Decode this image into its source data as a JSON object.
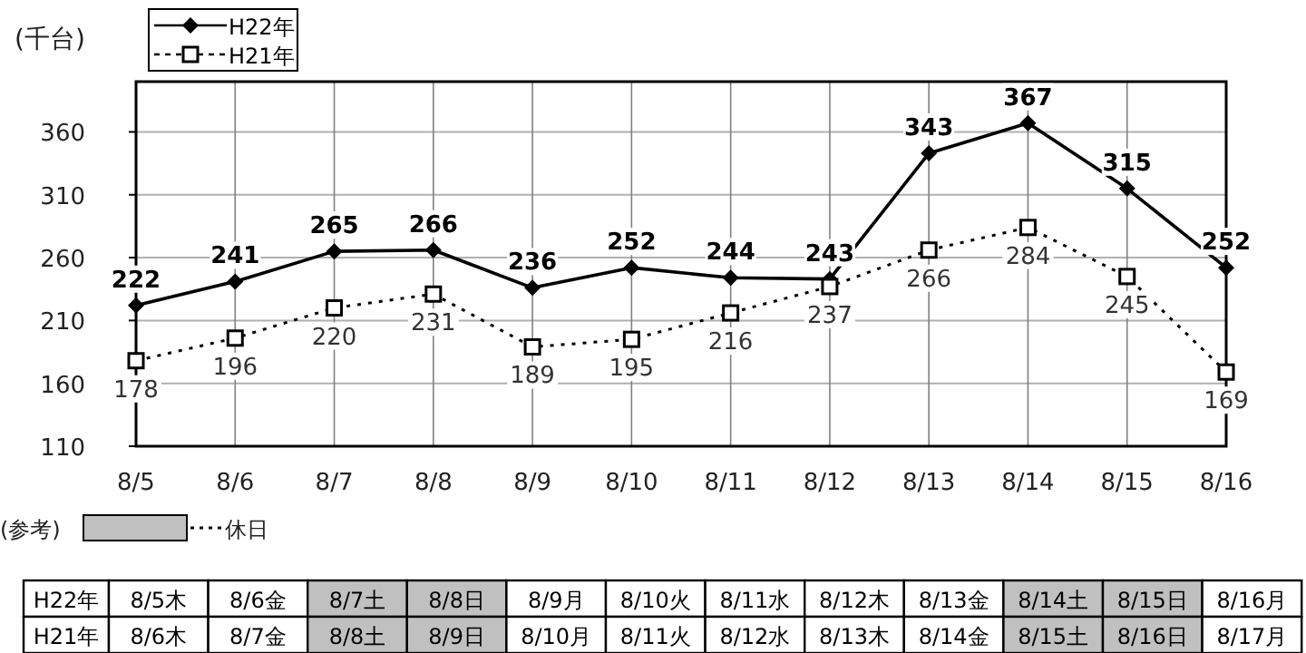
{
  "chart_data": [
    {
      "type": "line",
      "ylabel": "(千台)",
      "categories": [
        "8/5",
        "8/6",
        "8/7",
        "8/8",
        "8/9",
        "8/10",
        "8/11",
        "8/12",
        "8/13",
        "8/14",
        "8/15",
        "8/16"
      ],
      "series": [
        {
          "name": "H22年",
          "color": "#000000",
          "marker": "diamond",
          "line_style": "solid",
          "values": [
            222,
            241,
            265,
            266,
            236,
            252,
            244,
            243,
            343,
            367,
            315,
            252
          ]
        },
        {
          "name": "H21年",
          "color": "#000000",
          "marker": "square",
          "line_style": "dotted",
          "values": [
            178,
            196,
            220,
            231,
            189,
            195,
            216,
            237,
            266,
            284,
            245,
            169
          ]
        }
      ],
      "ylim": [
        110,
        400
      ],
      "yticks": [
        110,
        160,
        210,
        260,
        310,
        360
      ],
      "grid": true,
      "legend": "top left",
      "data_labels": true
    },
    {
      "type": "other",
      "annotations": [
        "(参考)",
        "休日"
      ],
      "y_categories": [
        "H22年",
        "H21年"
      ],
      "colors": [
        [
          "#ffffff",
          "#ffffff",
          "#c0c0c0",
          "#c0c0c0",
          "#ffffff",
          "#ffffff",
          "#ffffff",
          "#ffffff",
          "#ffffff",
          "#c0c0c0",
          "#c0c0c0",
          "#ffffff"
        ],
        [
          "#ffffff",
          "#ffffff",
          "#c0c0c0",
          "#c0c0c0",
          "#ffffff",
          "#ffffff",
          "#ffffff",
          "#ffffff",
          "#ffffff",
          "#c0c0c0",
          "#c0c0c0",
          "#ffffff"
        ]
      ],
      "cell_labels": [
        [
          "8/5木",
          "8/6金",
          "8/7土",
          "8/8日",
          "8/9月",
          "8/10火",
          "8/11水",
          "8/12木",
          "8/13金",
          "8/14土",
          "8/15日",
          "8/16月"
        ],
        [
          "8/6木",
          "8/7金",
          "8/8土",
          "8/9日",
          "8/10月",
          "8/11火",
          "8/12水",
          "8/13木",
          "8/14金",
          "8/15土",
          "8/16日",
          "8/17月"
        ]
      ]
    }
  ]
}
